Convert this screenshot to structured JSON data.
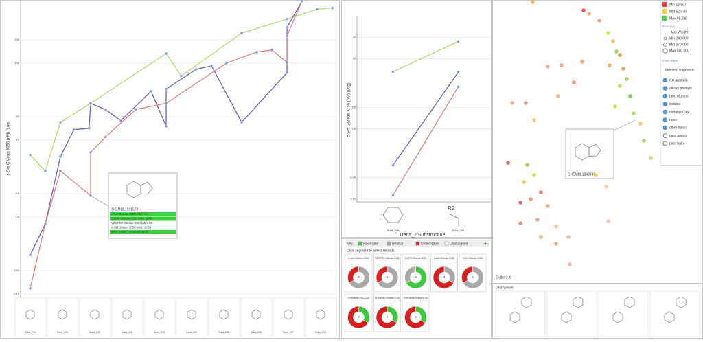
{
  "left_chart": {
    "type": "line",
    "y_label": "c-Src GMean IC50 (nM) (Log)",
    "log_scale": true,
    "ylim": [
      0.09,
      660
    ],
    "yticks": [
      {
        "value": 0.1,
        "label": "0.10"
      },
      {
        "value": 0.2,
        "label": "0.20"
      },
      {
        "value": 1,
        "label": "1.0"
      },
      {
        "value": 2,
        "label": "2.0"
      },
      10,
      20,
      100,
      200
    ],
    "xlim": [
      0,
      22.27
    ],
    "grid": true,
    "series": [
      {
        "color": "#b0dc70",
        "x": [
          2,
          3,
          4,
          6,
          11,
          12,
          16,
          19,
          21,
          22
        ],
        "values": [
          6.4,
          3.96,
          17,
          30,
          133,
          68,
          245,
          373,
          500,
          520
        ]
      },
      {
        "color": "#6a62b0",
        "x": [
          2,
          3,
          4,
          4.9,
          5.9,
          6,
          7,
          8,
          10,
          11,
          11,
          13,
          14,
          16,
          19,
          19,
          20
        ],
        "values": [
          0.32,
          0.81,
          6.1,
          13.6,
          14.2,
          30,
          24.7,
          17.8,
          43,
          15.1,
          46,
          83,
          92,
          17,
          75,
          291,
          640
        ]
      },
      {
        "color": "#e08080",
        "x": [
          2,
          3,
          4,
          6,
          6,
          7,
          9,
          11,
          15,
          17,
          18,
          19,
          19,
          20
        ],
        "values": [
          0.118,
          0.81,
          3.96,
          1.89,
          6.9,
          11,
          25,
          30,
          100,
          139,
          148,
          102,
          226,
          640
        ]
      }
    ],
    "tooltip": {
      "title": "CHEMBL1241678",
      "rows": [
        "c-Src GMean IC50 (nM): 1.5",
        "EGFR GMean IC50 (nM): 1600",
        "VEGFR2 GMean IC50 (nM): 68",
        "c-Abl GMean IC50 (nM): 20.54",
        "MPO Score - % Score: 84.2"
      ]
    },
    "substructures": [
      "Subs_Ref",
      "Subs_004",
      "Subs_002",
      "Subs_016",
      "Subs_010",
      "Subs_005",
      "Subs_011",
      "Subs_009",
      "Subs_007",
      "Subs_003"
    ],
    "r_label": "R2"
  },
  "middle_chart": {
    "type": "line",
    "y_label": "c-Src GMean IC50 (nM) (Log)",
    "x_label": "Trans_2 Substructure",
    "log_scale": true,
    "ylim": [
      0.09,
      40
    ],
    "yticks": [
      {
        "value": 0.1,
        "label": "0.10"
      },
      {
        "value": 0.2,
        "label": "0.20"
      },
      {
        "value": 1,
        "label": "1.0"
      },
      {
        "value": 2,
        "label": "2.0"
      },
      10,
      20
    ],
    "categories": [
      "Subs_Ref",
      "Subs_004"
    ],
    "series": [
      {
        "color": "#b0dc70",
        "values": [
          6.5,
          17.6
        ]
      },
      {
        "color": "#6a62b0",
        "values": [
          0.3,
          6.4
        ]
      },
      {
        "color": "#e08080",
        "values": [
          0.112,
          3.96
        ]
      }
    ]
  },
  "donut_panel": {
    "type": "pie",
    "key_title": "Key:",
    "key": [
      {
        "label": "Favorable",
        "color": "#3cc83c"
      },
      {
        "label": "Neutral",
        "color": "#a8a8a8"
      },
      {
        "label": "Unfavorable",
        "color": "#d82020"
      },
      {
        "label": "Unassigned",
        "color": "#ffffff"
      }
    ],
    "instruction": "Click segment to select records",
    "donuts": [
      {
        "title": "c-Src GMean IC50",
        "center": 3,
        "values": [
          0,
          2,
          1
        ]
      },
      {
        "title": "VEGFR2 GMean IC50",
        "center": 3,
        "values": [
          0,
          2,
          1
        ]
      },
      {
        "title": "EGFR GMean IC50",
        "center": 3,
        "values": [
          2,
          1,
          0
        ]
      },
      {
        "title": "c-Abl GMean IC50",
        "center": 3,
        "values": [
          0,
          1,
          2
        ]
      },
      {
        "title": "HCK GMean IC50",
        "center": 3,
        "values": [
          0,
          2,
          1
        ]
      },
      {
        "title": "PI3Kalpha GM IC50",
        "center": 3,
        "values": [
          1,
          0,
          2
        ]
      },
      {
        "title": "PI3Kbeta GMean IC50",
        "center": 3,
        "values": [
          1,
          0,
          2
        ]
      },
      {
        "title": "PI3Kdelta GMea IC50",
        "center": 3,
        "values": [
          1,
          0,
          2
        ]
      }
    ]
  },
  "scatter": {
    "type": "scatter",
    "xlim": [
      0,
      240
    ],
    "ylim": [
      400,
      0
    ],
    "x": [
      58,
      132,
      140,
      155,
      168,
      175,
      180,
      185,
      170,
      190,
      195,
      185,
      200,
      178,
      205,
      215,
      220,
      230,
      130,
      100,
      80,
      118,
      95,
      48,
      28,
      60,
      22,
      50,
      60,
      45,
      70,
      55,
      80,
      40,
      65,
      92,
      40,
      70,
      110,
      112,
      168,
      92,
      150,
      165
    ],
    "y": [
      3,
      15,
      20,
      30,
      48,
      60,
      75,
      80,
      95,
      100,
      115,
      125,
      140,
      155,
      165,
      180,
      205,
      230,
      90,
      95,
      97,
      120,
      140,
      150,
      150,
      175,
      237,
      240,
      255,
      265,
      280,
      290,
      300,
      295,
      320,
      330,
      325,
      345,
      345,
      385,
      322,
      355,
      255,
      272
    ],
    "colors": [
      "#f0a030",
      "#e03030",
      "#f0a060",
      "#f0a060",
      "#d8d840",
      "#f0c040",
      "#90d040",
      "#d09030",
      "#e0a050",
      "#f09040",
      "#90d040",
      "#c0d040",
      "#60c040",
      "#c0e050",
      "#a0d040",
      "#f0c050",
      "#a0d040",
      "#e0d060",
      "#f0a060",
      "#f09070",
      "#f0a080",
      "#f08060",
      "#f0b070",
      "#e08070",
      "#f0a080",
      "#f0c060",
      "#e05050",
      "#90d040",
      "#d0d050",
      "#f0c040",
      "#e07050",
      "#f09050",
      "#f0a060",
      "#e05050",
      "#f0a070",
      "#f0c080",
      "#f08060",
      "#f0a070",
      "#f0b090",
      "#f0b090",
      "#f0c0a0",
      "#f0a060",
      "#f0c040",
      "#f0d090"
    ],
    "tooltip": "CHEMBL1242749",
    "outliers": "Outliers: 8",
    "grid_viewer": "Grid Viewer"
  },
  "legend": {
    "color_items": [
      {
        "label": "Min 16.667",
        "color": "#e83c3c"
      },
      {
        "label": "Mid 52.978",
        "color": "#f0d040"
      },
      {
        "label": "Max 89.290",
        "color": "#5ad25a"
      }
    ],
    "size_title": "Point Size",
    "size_field": "Mol Weight",
    "size_items": [
      "Min 240.000",
      "Mid 370.000",
      "Max 500.000"
    ],
    "shape_title": "Point Shape",
    "shape_field": "Selected fragments",
    "shape_items": [
      "6,6 aromatic",
      "alkoxy phenyls",
      "benzofurans",
      "indoles",
      "metahydroxy",
      "none",
      "other halos",
      "para amino",
      "para halo"
    ]
  }
}
